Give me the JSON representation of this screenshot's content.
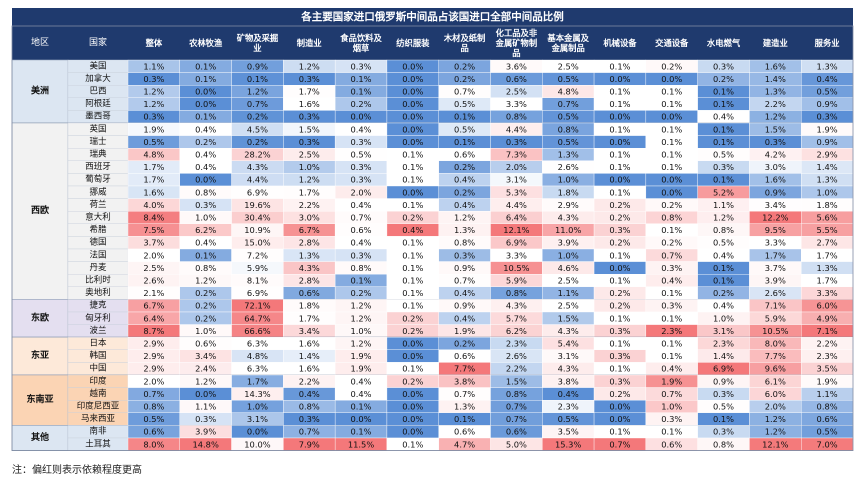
{
  "chart_data": {
    "type": "heatmap",
    "title": "各主要国家进口俄罗斯中间品占该国进口全部中间品比例",
    "row_header_labels": [
      "地区",
      "国家"
    ],
    "columns": [
      "整体",
      "农林牧渔",
      "矿物及采掘业",
      "制造业",
      "食品饮料及烟草",
      "纺织服装",
      "木材及纸制品",
      "化工品及非金属矿物制品",
      "基本金属及金属制品",
      "机械设备",
      "交通设备",
      "水电燃气",
      "建造业",
      "服务业"
    ],
    "regions": [
      {
        "name": "美洲",
        "countries": [
          {
            "name": "美国",
            "values": [
              "1.1%",
              "0.1%",
              "0.9%",
              "1.2%",
              "0.3%",
              "0.0%",
              "0.2%",
              "3.6%",
              "2.5%",
              "0.1%",
              "0.2%",
              "0.3%",
              "1.6%",
              "1.3%"
            ]
          },
          {
            "name": "加拿大",
            "values": [
              "0.3%",
              "0.1%",
              "0.1%",
              "0.3%",
              "0.1%",
              "0.0%",
              "0.2%",
              "0.6%",
              "0.5%",
              "0.0%",
              "0.0%",
              "0.2%",
              "1.4%",
              "0.4%"
            ]
          },
          {
            "name": "巴西",
            "values": [
              "1.2%",
              "0.0%",
              "1.2%",
              "1.7%",
              "0.1%",
              "0.0%",
              "0.7%",
              "2.5%",
              "4.8%",
              "0.1%",
              "0.1%",
              "0.1%",
              "1.3%",
              "0.5%"
            ]
          },
          {
            "name": "阿根廷",
            "values": [
              "1.2%",
              "0.0%",
              "0.7%",
              "1.6%",
              "0.2%",
              "0.0%",
              "0.5%",
              "3.3%",
              "0.7%",
              "0.1%",
              "0.1%",
              "0.1%",
              "2.2%",
              "0.9%"
            ]
          },
          {
            "name": "墨西哥",
            "values": [
              "0.3%",
              "0.1%",
              "0.2%",
              "0.3%",
              "0.0%",
              "0.0%",
              "0.1%",
              "0.8%",
              "0.5%",
              "0.0%",
              "0.0%",
              "0.4%",
              "1.2%",
              "0.3%"
            ]
          }
        ]
      },
      {
        "name": "西欧",
        "countries": [
          {
            "name": "英国",
            "values": [
              "1.9%",
              "0.4%",
              "4.5%",
              "1.5%",
              "0.4%",
              "0.0%",
              "0.5%",
              "4.4%",
              "0.8%",
              "0.1%",
              "0.1%",
              "0.1%",
              "1.5%",
              "1.9%"
            ]
          },
          {
            "name": "瑞士",
            "values": [
              "0.5%",
              "0.2%",
              "0.2%",
              "0.3%",
              "0.3%",
              "0.0%",
              "0.1%",
              "0.3%",
              "0.5%",
              "0.0%",
              "0.1%",
              "0.1%",
              "0.3%",
              "0.9%"
            ]
          },
          {
            "name": "瑞典",
            "values": [
              "4.8%",
              "0.4%",
              "28.2%",
              "2.5%",
              "0.5%",
              "0.1%",
              "0.6%",
              "7.3%",
              "1.3%",
              "0.1%",
              "0.1%",
              "0.5%",
              "4.2%",
              "2.9%"
            ]
          },
          {
            "name": "西班牙",
            "values": [
              "1.7%",
              "0.4%",
              "4.3%",
              "1.0%",
              "0.3%",
              "0.1%",
              "0.2%",
              "2.0%",
              "2.6%",
              "0.1%",
              "0.1%",
              "0.3%",
              "3.0%",
              "1.4%"
            ]
          },
          {
            "name": "葡萄牙",
            "values": [
              "1.7%",
              "0.0%",
              "4.4%",
              "1.2%",
              "0.3%",
              "0.1%",
              "0.4%",
              "3.1%",
              "1.0%",
              "0.0%",
              "0.0%",
              "0.1%",
              "1.6%",
              "1.3%"
            ]
          },
          {
            "name": "挪威",
            "values": [
              "1.6%",
              "0.8%",
              "6.9%",
              "1.7%",
              "2.0%",
              "0.0%",
              "0.2%",
              "5.3%",
              "1.8%",
              "0.1%",
              "0.0%",
              "5.2%",
              "0.9%",
              "1.0%"
            ]
          },
          {
            "name": "荷兰",
            "values": [
              "4.0%",
              "0.3%",
              "19.6%",
              "2.2%",
              "0.4%",
              "0.1%",
              "0.4%",
              "4.4%",
              "2.9%",
              "0.2%",
              "0.2%",
              "1.1%",
              "3.4%",
              "1.8%"
            ]
          },
          {
            "name": "意大利",
            "values": [
              "8.4%",
              "1.0%",
              "30.4%",
              "3.0%",
              "0.7%",
              "0.2%",
              "1.2%",
              "6.4%",
              "4.3%",
              "0.2%",
              "0.8%",
              "1.2%",
              "12.2%",
              "5.6%"
            ]
          },
          {
            "name": "希腊",
            "values": [
              "7.5%",
              "6.2%",
              "10.9%",
              "6.7%",
              "0.6%",
              "0.4%",
              "1.3%",
              "12.1%",
              "11.0%",
              "0.3%",
              "0.1%",
              "0.8%",
              "9.5%",
              "5.5%"
            ]
          },
          {
            "name": "德国",
            "values": [
              "3.7%",
              "0.4%",
              "15.0%",
              "2.8%",
              "0.4%",
              "0.1%",
              "0.8%",
              "6.9%",
              "3.9%",
              "0.2%",
              "0.2%",
              "0.5%",
              "3.3%",
              "2.7%"
            ]
          },
          {
            "name": "法国",
            "values": [
              "2.0%",
              "0.1%",
              "7.2%",
              "1.3%",
              "0.3%",
              "0.1%",
              "0.3%",
              "3.3%",
              "1.0%",
              "0.1%",
              "0.7%",
              "0.4%",
              "1.7%",
              "1.7%"
            ]
          },
          {
            "name": "丹麦",
            "values": [
              "2.5%",
              "0.8%",
              "5.9%",
              "4.3%",
              "0.8%",
              "0.1%",
              "0.9%",
              "10.5%",
              "4.6%",
              "0.0%",
              "0.3%",
              "0.1%",
              "3.7%",
              "1.3%"
            ]
          },
          {
            "name": "比利时",
            "values": [
              "2.6%",
              "1.2%",
              "8.1%",
              "2.8%",
              "0.1%",
              "0.1%",
              "0.7%",
              "5.9%",
              "2.5%",
              "0.1%",
              "0.4%",
              "0.1%",
              "3.9%",
              "1.7%"
            ]
          },
          {
            "name": "奥地利",
            "values": [
              "2.1%",
              "0.2%",
              "6.9%",
              "0.6%",
              "0.2%",
              "0.1%",
              "0.4%",
              "0.8%",
              "1.1%",
              "0.2%",
              "0.1%",
              "0.2%",
              "2.6%",
              "3.3%"
            ]
          }
        ]
      },
      {
        "name": "东欧",
        "countries": [
          {
            "name": "捷克",
            "values": [
              "6.7%",
              "0.2%",
              "72.1%",
              "1.8%",
              "1.2%",
              "0.1%",
              "0.9%",
              "4.3%",
              "2.5%",
              "0.2%",
              "0.3%",
              "0.4%",
              "7.1%",
              "6.0%"
            ]
          },
          {
            "name": "匈牙利",
            "values": [
              "6.4%",
              "0.2%",
              "64.7%",
              "1.7%",
              "1.2%",
              "0.2%",
              "0.4%",
              "5.7%",
              "1.5%",
              "0.1%",
              "0.1%",
              "1.0%",
              "5.9%",
              "4.9%"
            ]
          },
          {
            "name": "波兰",
            "values": [
              "8.7%",
              "1.0%",
              "66.6%",
              "3.4%",
              "1.0%",
              "0.2%",
              "1.9%",
              "6.2%",
              "4.3%",
              "0.3%",
              "2.3%",
              "3.1%",
              "10.5%",
              "7.1%"
            ]
          }
        ]
      },
      {
        "name": "东亚",
        "countries": [
          {
            "name": "日本",
            "values": [
              "2.9%",
              "0.6%",
              "6.3%",
              "1.6%",
              "1.2%",
              "0.0%",
              "0.2%",
              "2.3%",
              "5.4%",
              "0.1%",
              "0.1%",
              "2.3%",
              "8.0%",
              "2.2%"
            ]
          },
          {
            "name": "韩国",
            "values": [
              "2.9%",
              "3.4%",
              "4.8%",
              "1.4%",
              "1.9%",
              "0.0%",
              "0.6%",
              "2.6%",
              "3.1%",
              "0.3%",
              "0.1%",
              "1.4%",
              "7.7%",
              "2.3%"
            ]
          },
          {
            "name": "中国",
            "values": [
              "2.9%",
              "2.4%",
              "6.3%",
              "1.6%",
              "1.9%",
              "0.1%",
              "7.7%",
              "2.2%",
              "4.3%",
              "0.1%",
              "0.4%",
              "6.9%",
              "9.6%",
              "3.5%"
            ]
          }
        ]
      },
      {
        "name": "东南亚",
        "countries": [
          {
            "name": "印度",
            "values": [
              "2.0%",
              "1.2%",
              "1.7%",
              "2.2%",
              "0.4%",
              "0.2%",
              "3.8%",
              "1.5%",
              "3.8%",
              "0.3%",
              "1.9%",
              "0.9%",
              "6.1%",
              "1.9%"
            ]
          },
          {
            "name": "越南",
            "values": [
              "0.7%",
              "0.0%",
              "14.3%",
              "0.4%",
              "0.4%",
              "0.0%",
              "0.7%",
              "0.8%",
              "0.4%",
              "0.2%",
              "0.7%",
              "0.3%",
              "6.0%",
              "1.1%"
            ]
          },
          {
            "name": "印度尼西亚",
            "values": [
              "0.8%",
              "1.1%",
              "1.0%",
              "0.8%",
              "0.1%",
              "0.0%",
              "1.3%",
              "0.7%",
              "2.3%",
              "0.0%",
              "1.0%",
              "0.5%",
              "2.0%",
              "0.8%"
            ]
          },
          {
            "name": "马来西亚",
            "values": [
              "0.5%",
              "0.3%",
              "3.1%",
              "0.3%",
              "0.0%",
              "0.0%",
              "0.1%",
              "0.7%",
              "0.5%",
              "0.0%",
              "0.3%",
              "0.1%",
              "1.2%",
              "0.6%"
            ]
          }
        ]
      },
      {
        "name": "其他",
        "countries": [
          {
            "name": "南非",
            "values": [
              "0.6%",
              "3.9%",
              "0.0%",
              "0.7%",
              "0.1%",
              "0.0%",
              "0.6%",
              "0.6%",
              "3.5%",
              "0.1%",
              "0.1%",
              "0.3%",
              "1.2%",
              "0.5%"
            ]
          },
          {
            "name": "土耳其",
            "values": [
              "8.0%",
              "14.8%",
              "10.0%",
              "7.9%",
              "11.5%",
              "0.1%",
              "4.7%",
              "5.0%",
              "15.3%",
              "0.7%",
              "0.6%",
              "0.8%",
              "12.1%",
              "7.0%"
            ]
          }
        ]
      }
    ],
    "note": "注：偏红则表示依赖程度更高",
    "colors": {
      "high": "#f4787a",
      "mid": "#ffffff",
      "low": "#5b8fd6",
      "region_americas": "#dce6f2",
      "region_west_europe": "#f2f2f2",
      "region_east_europe": "#e4dff0",
      "region_east_asia": "#fde9d9",
      "region_se_asia": "#fbd4b4",
      "region_other": "#dce6f2",
      "header_bg": "#1f3a6e",
      "header_text": "#ffffff"
    }
  }
}
